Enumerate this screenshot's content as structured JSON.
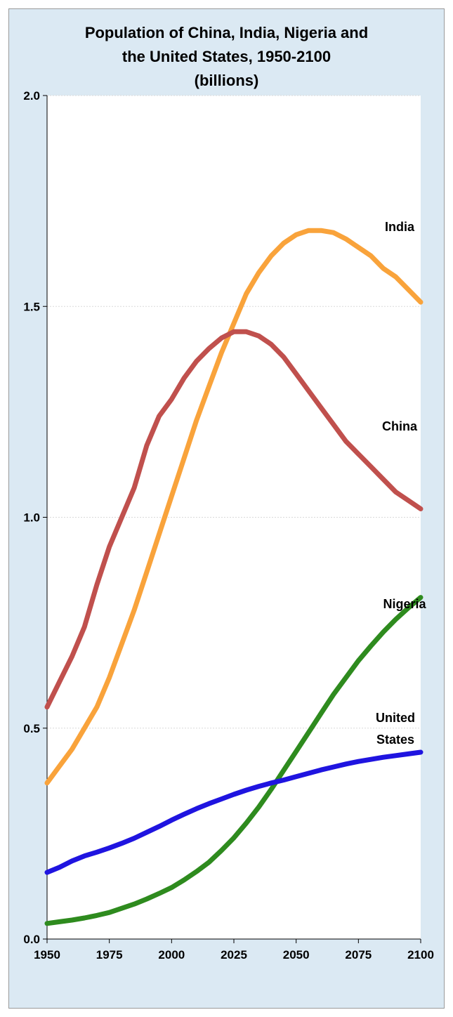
{
  "chart_data": {
    "type": "line",
    "title_lines": [
      "Population of China, India, Nigeria and",
      "the United States, 1950-2100",
      "(billions)"
    ],
    "xlabel": "",
    "ylabel": "",
    "xlim": [
      1950,
      2100
    ],
    "ylim": [
      0,
      2.0
    ],
    "x_ticks": [
      1950,
      1975,
      2000,
      2025,
      2050,
      2075,
      2100
    ],
    "y_ticks": [
      0.0,
      0.5,
      1.0,
      1.5,
      2.0
    ],
    "y_tick_labels": [
      "0.0",
      "0.5",
      "1.0",
      "1.5",
      "2.0"
    ],
    "grid": "horizontal",
    "legend": "none (direct labels at line ends)",
    "series": [
      {
        "name": "India",
        "label_lines": [
          "India"
        ],
        "color": "#f9a33b",
        "x": [
          1950,
          1955,
          1960,
          1965,
          1970,
          1975,
          1980,
          1985,
          1990,
          1995,
          2000,
          2005,
          2010,
          2015,
          2020,
          2025,
          2030,
          2035,
          2040,
          2045,
          2050,
          2055,
          2060,
          2065,
          2070,
          2075,
          2080,
          2085,
          2090,
          2095,
          2100
        ],
        "values": [
          0.37,
          0.41,
          0.45,
          0.5,
          0.55,
          0.62,
          0.7,
          0.78,
          0.87,
          0.96,
          1.05,
          1.14,
          1.23,
          1.31,
          1.39,
          1.46,
          1.53,
          1.58,
          1.62,
          1.65,
          1.67,
          1.68,
          1.68,
          1.675,
          1.66,
          1.64,
          1.62,
          1.59,
          1.57,
          1.54,
          1.51
        ]
      },
      {
        "name": "China",
        "label_lines": [
          "China"
        ],
        "color": "#c0504d",
        "x": [
          1950,
          1955,
          1960,
          1965,
          1970,
          1975,
          1980,
          1985,
          1990,
          1995,
          2000,
          2005,
          2010,
          2015,
          2020,
          2025,
          2030,
          2035,
          2040,
          2045,
          2050,
          2055,
          2060,
          2065,
          2070,
          2075,
          2080,
          2085,
          2090,
          2095,
          2100
        ],
        "values": [
          0.55,
          0.61,
          0.67,
          0.74,
          0.84,
          0.93,
          1.0,
          1.07,
          1.17,
          1.24,
          1.28,
          1.33,
          1.37,
          1.4,
          1.425,
          1.44,
          1.44,
          1.43,
          1.41,
          1.38,
          1.34,
          1.3,
          1.26,
          1.22,
          1.18,
          1.15,
          1.12,
          1.09,
          1.06,
          1.04,
          1.02
        ]
      },
      {
        "name": "Nigeria",
        "label_lines": [
          "Nigeria"
        ],
        "color": "#2e8b1e",
        "x": [
          1950,
          1955,
          1960,
          1965,
          1970,
          1975,
          1980,
          1985,
          1990,
          1995,
          2000,
          2005,
          2010,
          2015,
          2020,
          2025,
          2030,
          2035,
          2040,
          2045,
          2050,
          2055,
          2060,
          2065,
          2070,
          2075,
          2080,
          2085,
          2090,
          2095,
          2100
        ],
        "values": [
          0.037,
          0.041,
          0.045,
          0.05,
          0.056,
          0.063,
          0.073,
          0.083,
          0.095,
          0.108,
          0.122,
          0.14,
          0.16,
          0.182,
          0.21,
          0.24,
          0.275,
          0.313,
          0.355,
          0.4,
          0.445,
          0.49,
          0.535,
          0.58,
          0.62,
          0.66,
          0.695,
          0.728,
          0.758,
          0.785,
          0.81
        ]
      },
      {
        "name": "United States",
        "label_lines": [
          "United",
          "States"
        ],
        "color": "#1f14e0",
        "x": [
          1950,
          1955,
          1960,
          1965,
          1970,
          1975,
          1980,
          1985,
          1990,
          1995,
          2000,
          2005,
          2010,
          2015,
          2020,
          2025,
          2030,
          2035,
          2040,
          2045,
          2050,
          2055,
          2060,
          2065,
          2070,
          2075,
          2080,
          2085,
          2090,
          2095,
          2100
        ],
        "values": [
          0.158,
          0.17,
          0.185,
          0.197,
          0.206,
          0.216,
          0.227,
          0.239,
          0.253,
          0.267,
          0.282,
          0.296,
          0.309,
          0.321,
          0.332,
          0.343,
          0.353,
          0.362,
          0.37,
          0.377,
          0.385,
          0.393,
          0.401,
          0.408,
          0.415,
          0.421,
          0.426,
          0.431,
          0.435,
          0.439,
          0.443
        ]
      }
    ]
  }
}
